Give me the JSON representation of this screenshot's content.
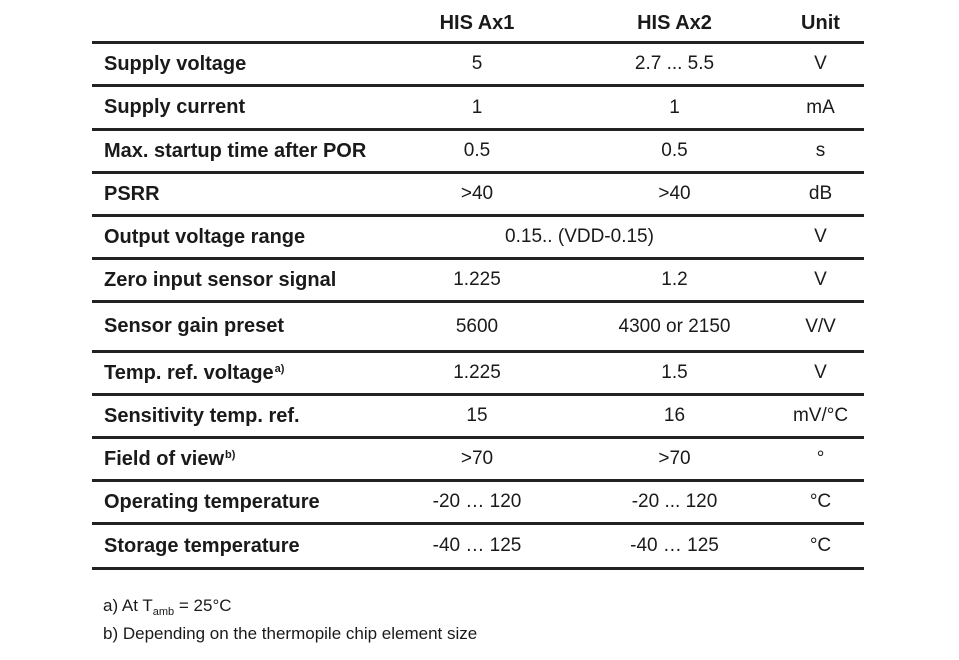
{
  "header": {
    "col_a": "HIS Ax1",
    "col_b": "HIS Ax2",
    "col_unit": "Unit"
  },
  "rows": [
    {
      "param": "Supply voltage",
      "a": "5",
      "b": "2.7 ... 5.5",
      "unit": "V"
    },
    {
      "param": "Supply current",
      "a": "1",
      "b": "1",
      "unit": "mA"
    },
    {
      "param": "Max. startup time after POR",
      "a": "0.5",
      "b": "0.5",
      "unit": "s"
    },
    {
      "param": "PSRR",
      "a": ">40",
      "b": ">40",
      "unit": "dB"
    },
    {
      "param": "Output voltage range",
      "span": "0.15.. (VDD-0.15)",
      "unit": "V"
    },
    {
      "param": "Zero input sensor signal",
      "a": "1.225",
      "b": "1.2",
      "unit": "V"
    },
    {
      "param": "Sensor gain preset",
      "a": "5600",
      "b": "4300 or 2150",
      "unit": "V/V"
    },
    {
      "param": "Temp. ref. voltage",
      "note": "a)",
      "a": "1.225",
      "b": "1.5",
      "unit": "V"
    },
    {
      "param": "Sensitivity temp. ref.",
      "a": "15",
      "b": "16",
      "unit": "mV/°C"
    },
    {
      "param": "Field of view",
      "note": "b)",
      "a": ">70",
      "b": ">70",
      "unit": "°"
    },
    {
      "param": "Operating temperature",
      "a": "-20 … 120",
      "b": "-20 ... 120",
      "unit": "°C"
    },
    {
      "param": "Storage temperature",
      "a": "-40 … 125",
      "b": "-40 … 125",
      "unit": "°C"
    }
  ],
  "footnotes": {
    "a_prefix": "a) At T",
    "a_sub": "amb",
    "a_suffix": " = 25°C",
    "b": "b) Depending on the thermopile chip element size"
  }
}
